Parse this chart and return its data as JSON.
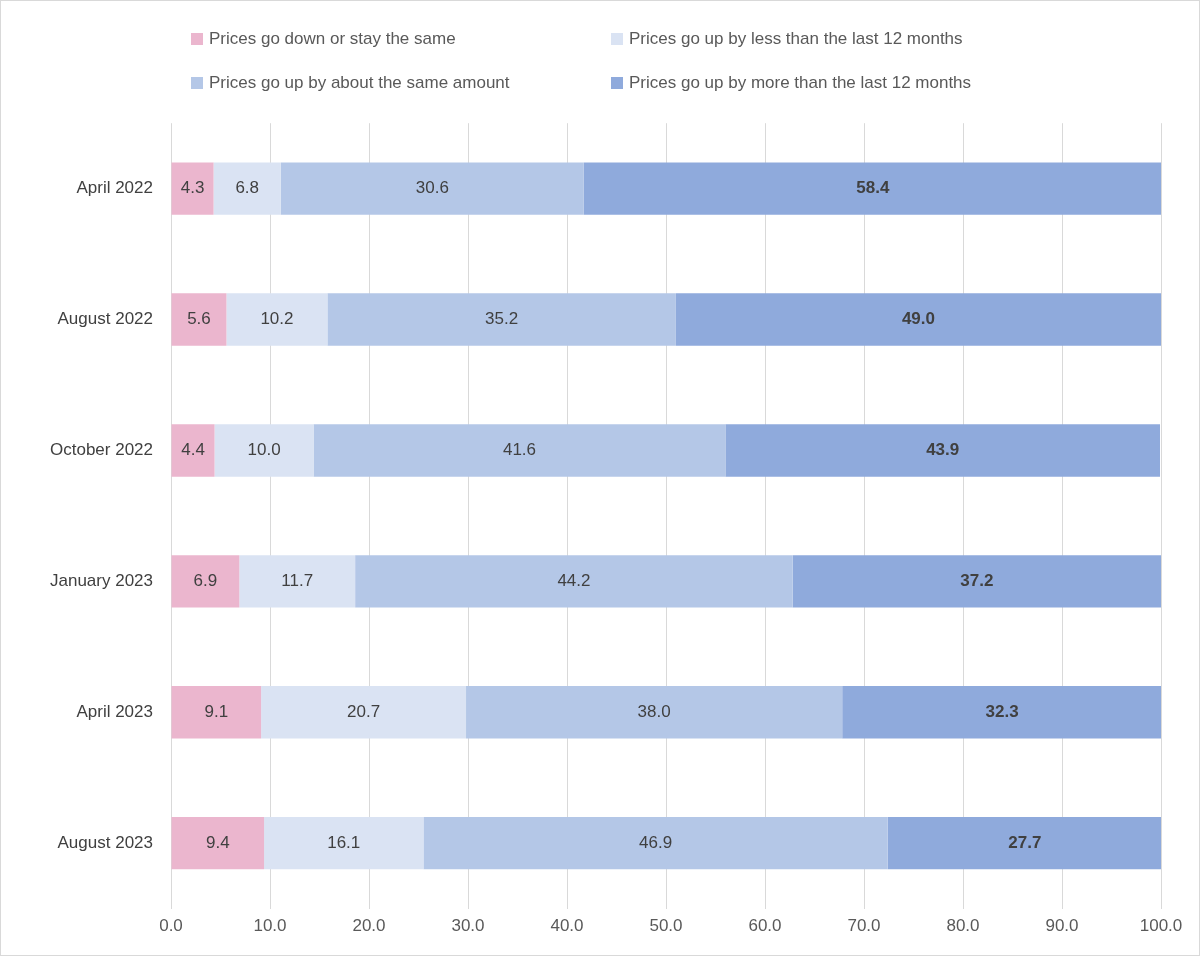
{
  "chart_data": {
    "type": "bar",
    "orientation": "horizontal",
    "stacked": true,
    "categories": [
      "April 2022",
      "August 2022",
      "October 2022",
      "January 2023",
      "April 2023",
      "August 2023"
    ],
    "series": [
      {
        "name": "Prices go down or stay the same",
        "color": "#ebb6ce",
        "values": [
          4.3,
          5.6,
          4.4,
          6.9,
          9.1,
          9.4
        ],
        "value_labels": [
          "4.3",
          "5.6",
          "4.4",
          "6.9",
          "9.1",
          "9.4"
        ]
      },
      {
        "name": "Prices go up by less than the last 12 months",
        "color": "#dae3f3",
        "values": [
          6.8,
          10.2,
          10.0,
          11.7,
          20.7,
          16.1
        ],
        "value_labels": [
          "6.8",
          "10.2",
          "10.0",
          "11.7",
          "20.7",
          "16.1"
        ]
      },
      {
        "name": "Prices go up by about the same amount",
        "color": "#b4c7e7",
        "values": [
          30.6,
          35.2,
          41.6,
          44.2,
          38.0,
          46.9
        ],
        "value_labels": [
          "30.6",
          "35.2",
          "41.6",
          "44.2",
          "38.0",
          "46.9"
        ]
      },
      {
        "name": "Prices go up by more than the last 12 months",
        "color": "#8faadc",
        "values": [
          58.4,
          49.0,
          43.9,
          37.2,
          32.3,
          27.7
        ],
        "value_labels": [
          "58.4",
          "49.0",
          "43.9",
          "37.2",
          "32.3",
          "27.7"
        ]
      }
    ],
    "xlim": [
      0,
      100
    ],
    "xticks": [
      {
        "value": 0,
        "label": "0.0"
      },
      {
        "value": 10,
        "label": "10.0"
      },
      {
        "value": 20,
        "label": "20.0"
      },
      {
        "value": 30,
        "label": "30.0"
      },
      {
        "value": 40,
        "label": "40.0"
      },
      {
        "value": 50,
        "label": "50.0"
      },
      {
        "value": 60,
        "label": "60.0"
      },
      {
        "value": 70,
        "label": "70.0"
      },
      {
        "value": 80,
        "label": "80.0"
      },
      {
        "value": 90,
        "label": "90.0"
      },
      {
        "value": 100,
        "label": "100.0"
      }
    ],
    "grid": "x",
    "legend": "top"
  }
}
